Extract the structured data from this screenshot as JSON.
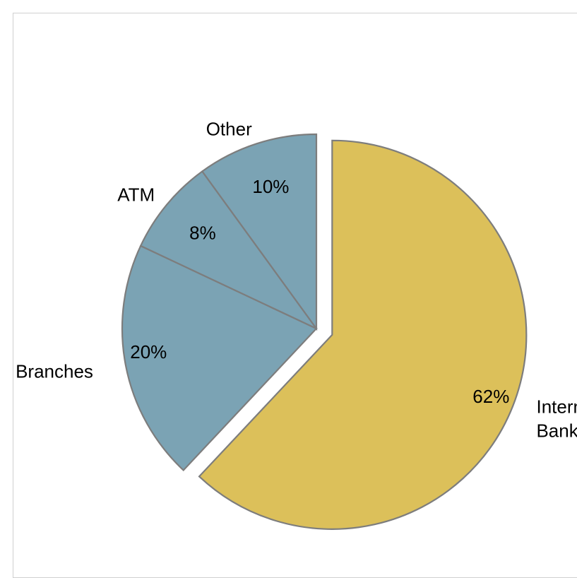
{
  "chart_data": {
    "type": "pie",
    "categories": [
      "Internet Banking",
      "Branches",
      "ATM",
      "Other"
    ],
    "values": [
      62,
      20,
      8,
      10
    ],
    "value_labels": [
      "62%",
      "20%",
      "8%",
      "10%"
    ],
    "label_lines": [
      [
        "Internet",
        "Banking"
      ],
      [
        "Branches"
      ],
      [
        "ATM"
      ],
      [
        "Other"
      ]
    ],
    "colors": [
      "#dcc05a",
      "#7ba3b4",
      "#7ba3b4",
      "#7ba3b4"
    ],
    "exploded": [
      "Internet Banking"
    ],
    "legend": "none"
  }
}
